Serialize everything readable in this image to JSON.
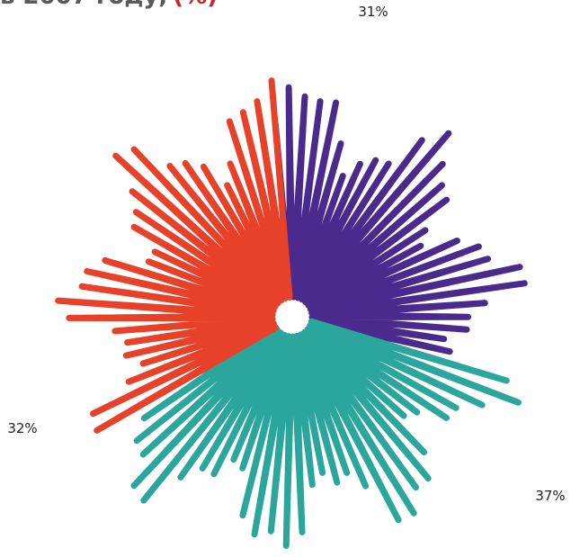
{
  "chart_data": {
    "type": "pie",
    "title": "в 2007 году,",
    "title_suffix": "(%)",
    "series": [
      {
        "name": "",
        "color": "#4a2a8c",
        "values": [
          31
        ],
        "value_labels": [
          "31%"
        ]
      },
      {
        "name": "",
        "color": "#2ba69c",
        "values": [
          37
        ],
        "value_labels": [
          "37%"
        ]
      },
      {
        "name": "",
        "color": "#e8412a",
        "values": [
          32
        ],
        "value_labels": [
          "32%"
        ]
      }
    ]
  }
}
